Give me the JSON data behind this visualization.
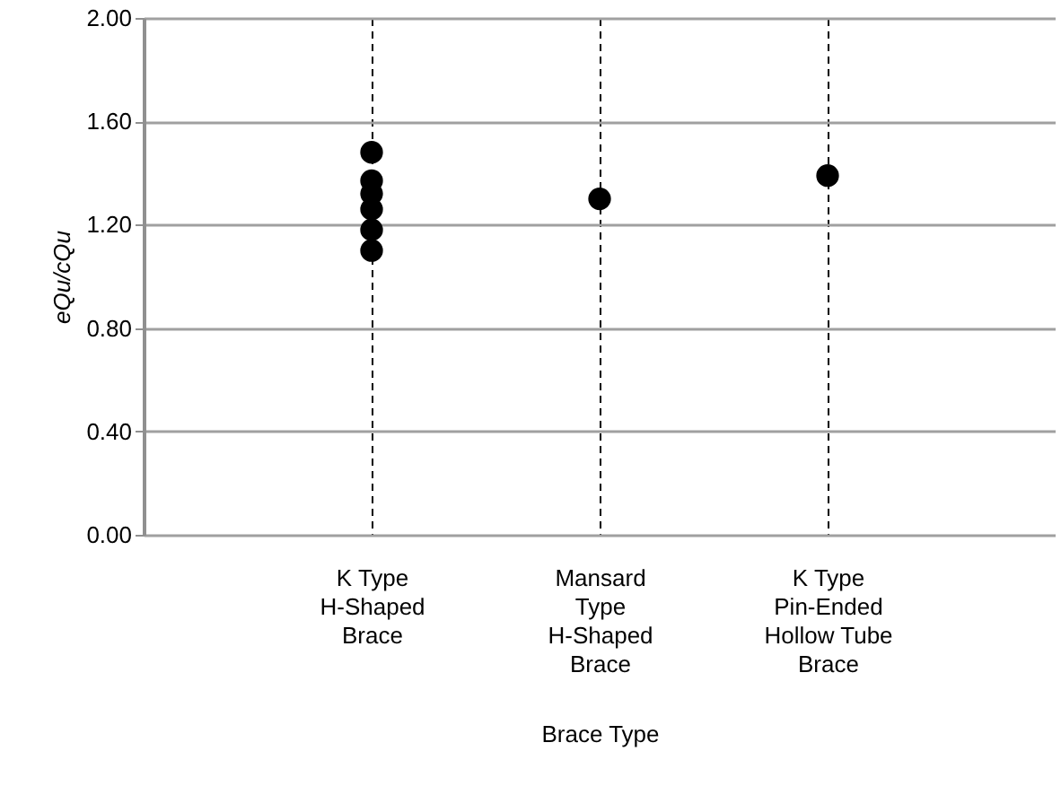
{
  "chart_data": {
    "type": "scatter",
    "xlabel": "Brace Type",
    "ylabel": "eQu/cQu",
    "categories": [
      "K Type\n\nH-Shaped\nBrace",
      "Mansard\nType\nH-Shaped\nBrace",
      "K Type\n\nPin-Ended\nHollow Tube\nBrace"
    ],
    "series": [
      {
        "color": "#000000",
        "x": [
          "K Type\n\nH-Shaped\nBrace",
          "K Type\n\nH-Shaped\nBrace",
          "K Type\n\nH-Shaped\nBrace",
          "K Type\n\nH-Shaped\nBrace",
          "K Type\n\nH-Shaped\nBrace",
          "K Type\n\nH-Shaped\nBrace",
          "Mansard\nType\nH-Shaped\nBrace",
          "K Type\n\nPin-Ended\nHollow Tube\nBrace"
        ],
        "values": [
          1.48,
          1.37,
          1.32,
          1.26,
          1.18,
          1.1,
          1.3,
          1.39
        ]
      }
    ],
    "ylim": [
      0,
      2
    ],
    "yticks": [
      {
        "value": 0,
        "label": "0.00"
      },
      {
        "value": 0.4,
        "label": "0.40"
      },
      {
        "value": 0.8,
        "label": "0.80"
      },
      {
        "value": 1.2,
        "label": "1.20"
      },
      {
        "value": 1.6,
        "label": "1.60"
      },
      {
        "value": 2,
        "label": "2.00"
      }
    ],
    "grid": true,
    "marker": "circle"
  }
}
